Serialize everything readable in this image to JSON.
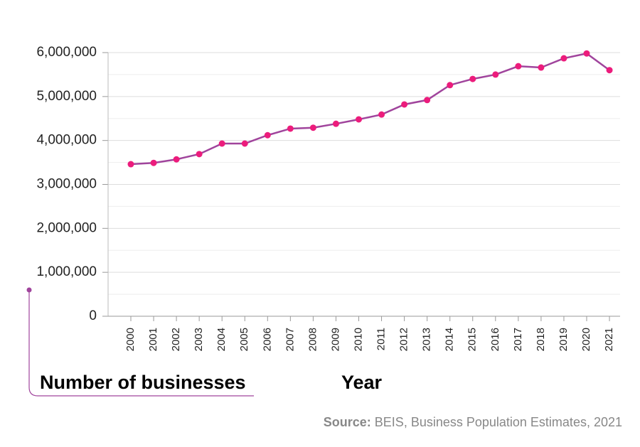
{
  "chart_data": {
    "type": "line",
    "x_label": "Year",
    "y_label": "Number of businesses",
    "source_label": "Source:",
    "source_text": "BEIS, Business Population Estimates, 2021",
    "categories": [
      "2000",
      "2001",
      "2002",
      "2003",
      "2004",
      "2005",
      "2006",
      "2007",
      "2008",
      "2009",
      "2010",
      "2011",
      "2012",
      "2013",
      "2014",
      "2015",
      "2016",
      "2017",
      "2018",
      "2019",
      "2020",
      "2021"
    ],
    "values": [
      3460000,
      3490000,
      3570000,
      3690000,
      3930000,
      3930000,
      4120000,
      4270000,
      4290000,
      4380000,
      4480000,
      4590000,
      4820000,
      4920000,
      5260000,
      5400000,
      5500000,
      5690000,
      5660000,
      5870000,
      5980000,
      5600000
    ],
    "line_color": "#a0449c",
    "marker_color": "#ec1c7c",
    "ylim": [
      0,
      6000000
    ],
    "yticks": [
      0,
      {
        "value": 1000000,
        "label": "1,000,000"
      },
      {
        "value": 2000000,
        "label": "2,000,000"
      },
      {
        "value": 3000000,
        "label": "3,000,000"
      },
      {
        "value": 4000000,
        "label": "4,000,000"
      },
      {
        "value": 5000000,
        "label": "5,000,000"
      },
      {
        "value": 6000000,
        "label": "6,000,000"
      }
    ],
    "grid": true
  }
}
